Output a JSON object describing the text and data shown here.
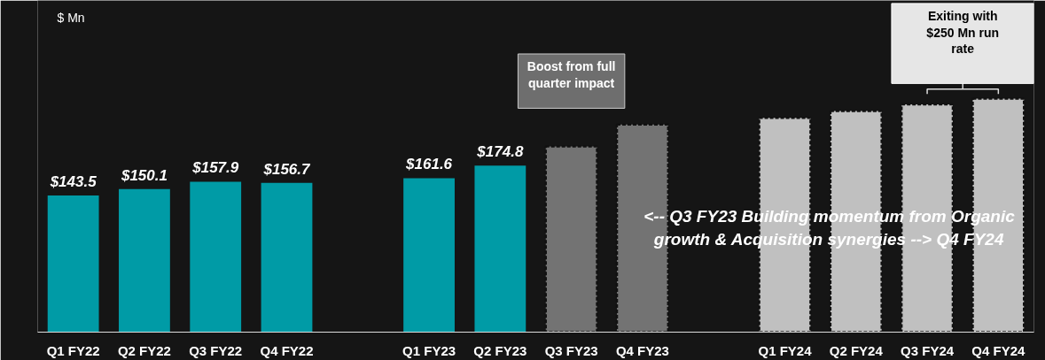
{
  "chart_data": {
    "type": "bar",
    "categories": [
      "Q1 FY22",
      "Q2 FY22",
      "Q3 FY22",
      "Q4 FY22",
      null,
      "Q1 FY23",
      "Q2 FY23",
      "Q3 FY23",
      "Q4 FY23",
      null,
      "Q1 FY24",
      "Q2 FY24",
      "Q3 FY24",
      "Q4 FY24"
    ],
    "series": [
      {
        "color": "#009ba6",
        "values": [
          143.5,
          150.1,
          157.9,
          156.7,
          null,
          161.6,
          174.8,
          null,
          null,
          null,
          null,
          null,
          null,
          null
        ],
        "value_labels": [
          "$143.5",
          "$150.1",
          "$157.9",
          "$156.7",
          null,
          "$161.6",
          "$174.8",
          null,
          null,
          null,
          null,
          null,
          null,
          null
        ]
      },
      {
        "color": "#737373",
        "line_style": "dashed",
        "values": [
          null,
          null,
          null,
          null,
          null,
          null,
          null,
          195,
          218,
          null,
          null,
          null,
          null,
          null
        ]
      },
      {
        "color": "#c0c0c0",
        "line_style": "dashed",
        "values": [
          null,
          null,
          null,
          null,
          null,
          null,
          null,
          null,
          null,
          null,
          225,
          232,
          239,
          245
        ]
      }
    ],
    "annotations": [
      "$ Mn",
      "Boost from full\nquarter impact",
      "Exiting with\n$250 Mn run\nrate",
      "<-- Q3 FY23 Building momentum from Organic\ngrowth & Acquisition synergies --> Q4 FY24"
    ],
    "grid": false
  }
}
